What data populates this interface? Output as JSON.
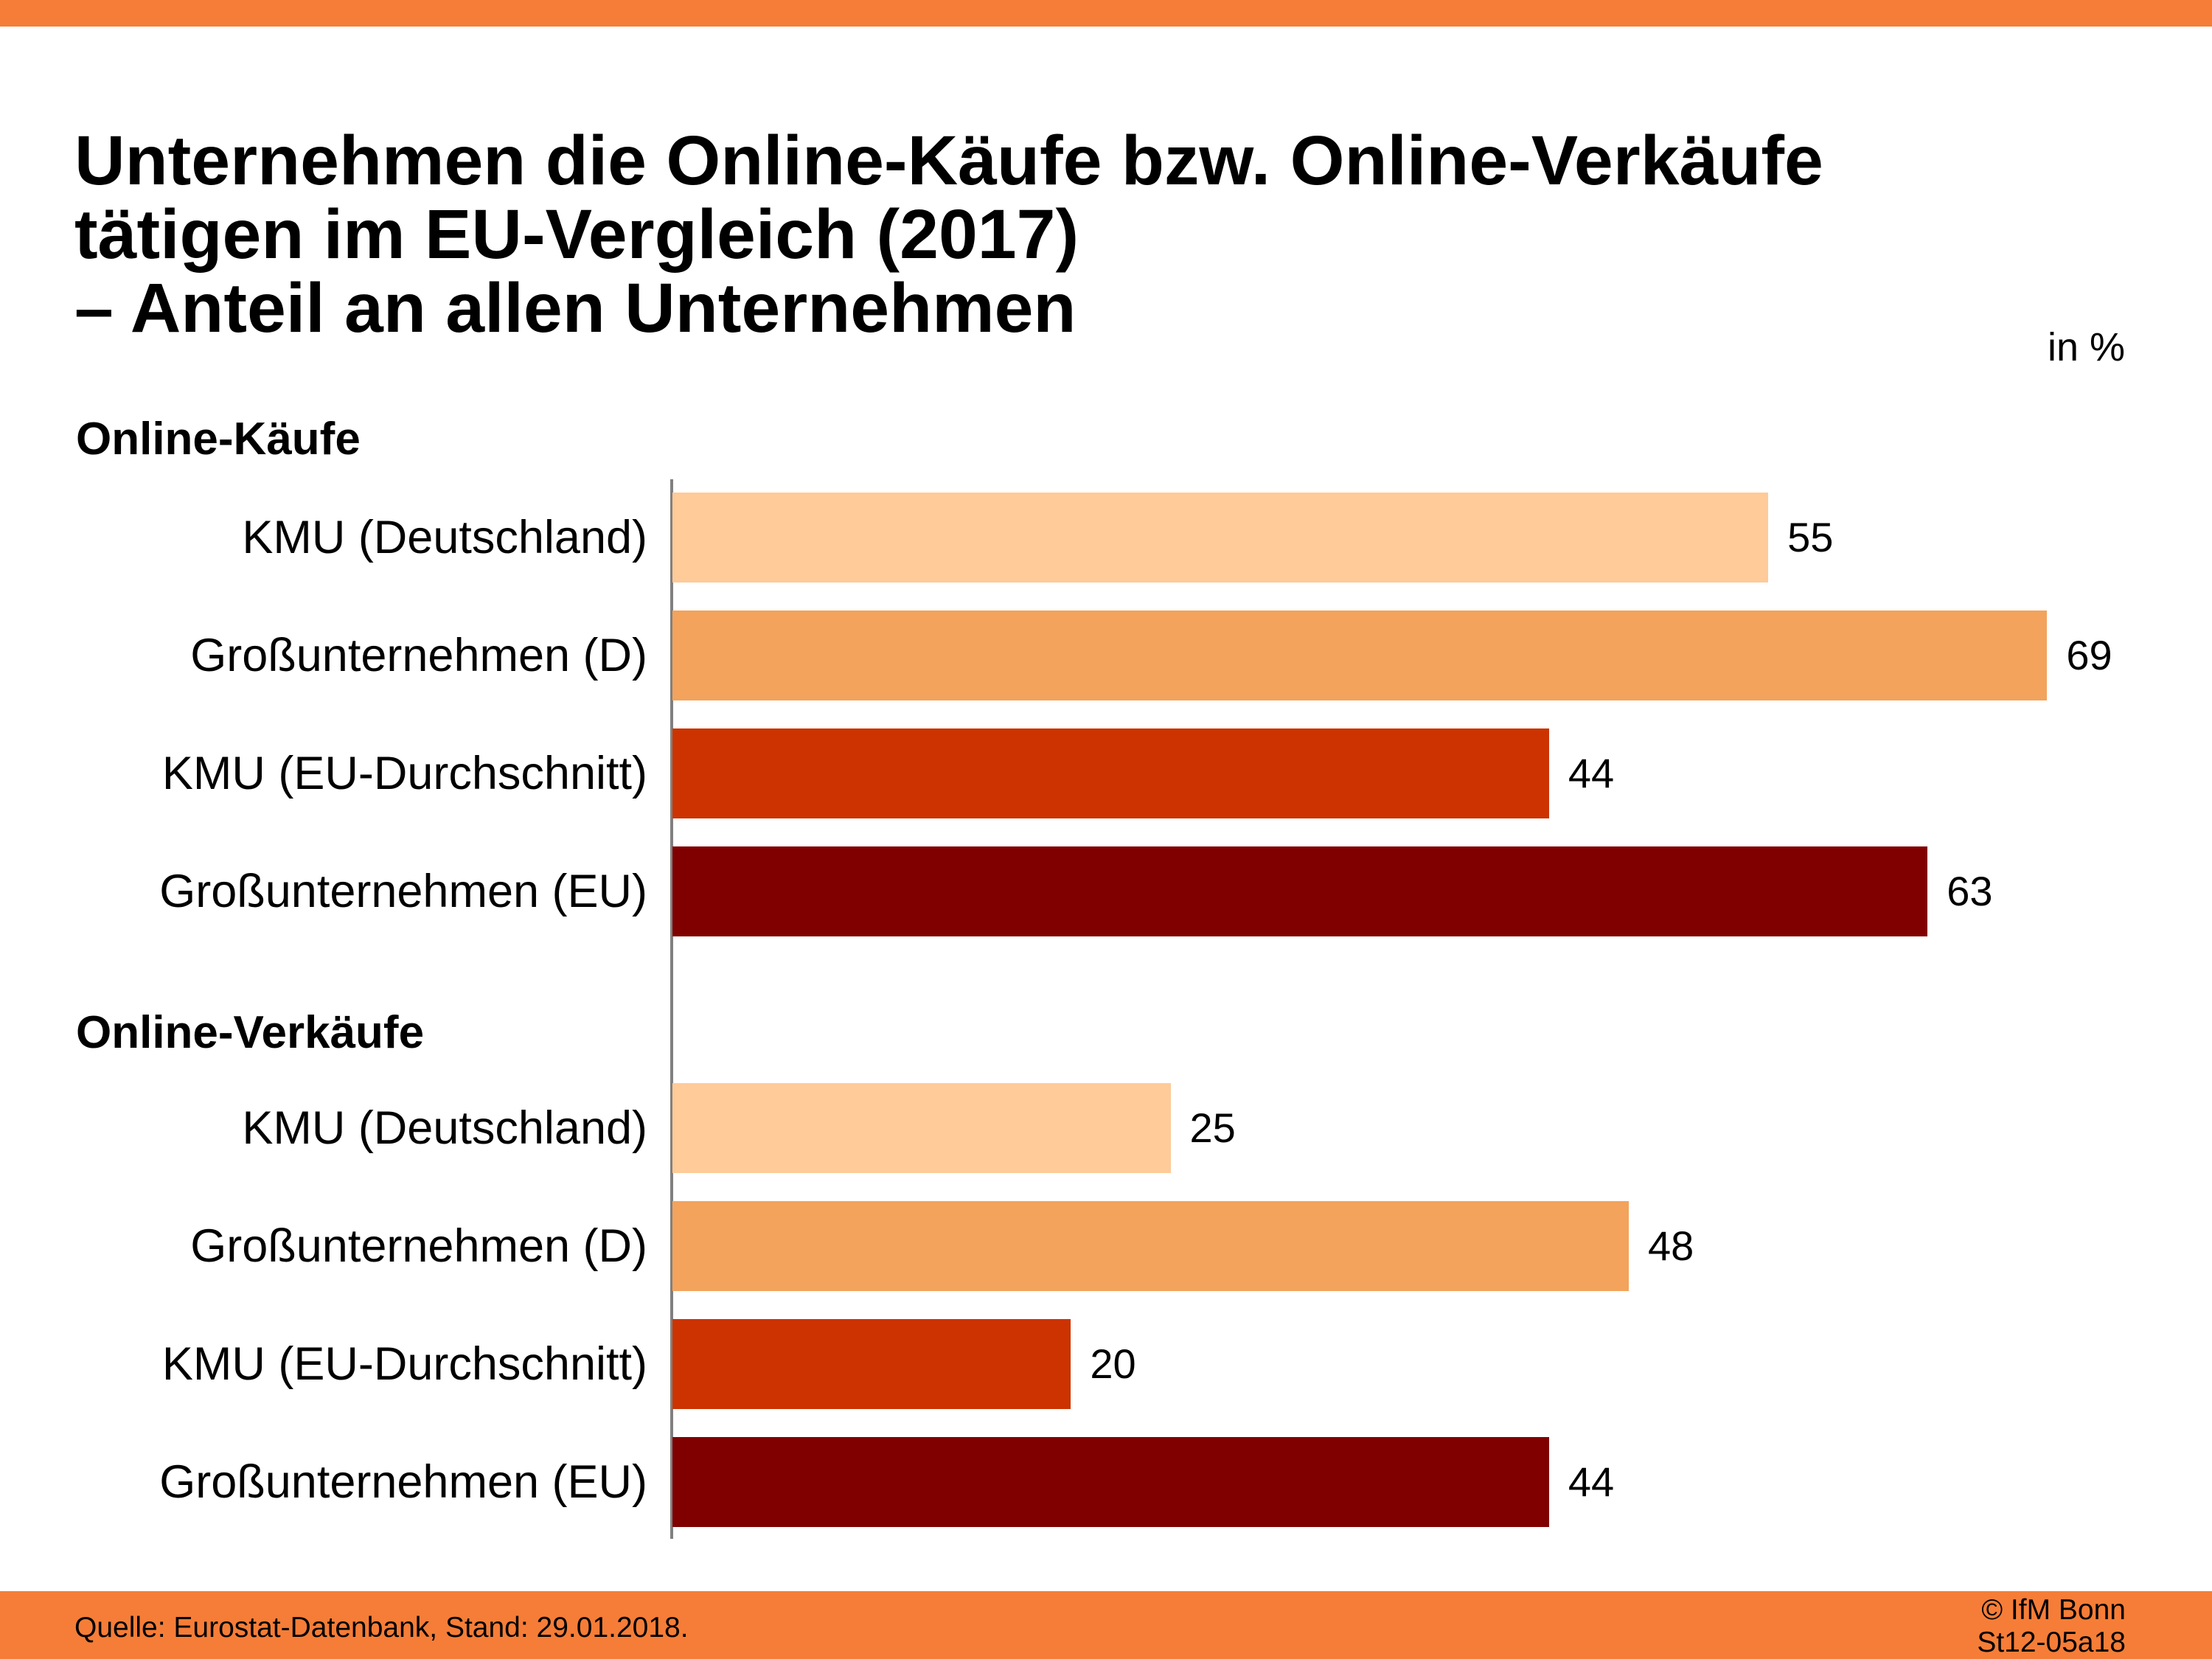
{
  "chart_data": {
    "type": "bar",
    "orientation": "horizontal",
    "title_lines": [
      "Unternehmen die Online-Käufe bzw. Online-Verkäufe",
      "tätigen im EU-Vergleich (2017)",
      "– Anteil an allen Unternehmen"
    ],
    "unit": "in %",
    "xlim": [
      0,
      80
    ],
    "grid": false,
    "categories": [
      "KMU (Deutschland)",
      "Großunternehmen (D)",
      "KMU (EU-Durchschnitt)",
      "Großunternehmen (EU)"
    ],
    "colors": [
      "#FECB99",
      "#F3A35B",
      "#CC3300",
      "#800000"
    ],
    "groups": [
      {
        "name": "Online-Käufe",
        "values": [
          55,
          69,
          44,
          63
        ]
      },
      {
        "name": "Online-Verkäufe",
        "values": [
          25,
          48,
          20,
          44
        ]
      }
    ]
  },
  "footer": {
    "source": "Quelle: Eurostat-Datenbank, Stand: 29.01.2018.",
    "copyright": "© IfM Bonn",
    "code": "St12-05a18"
  },
  "theme": {
    "accent": "#F57D37"
  }
}
